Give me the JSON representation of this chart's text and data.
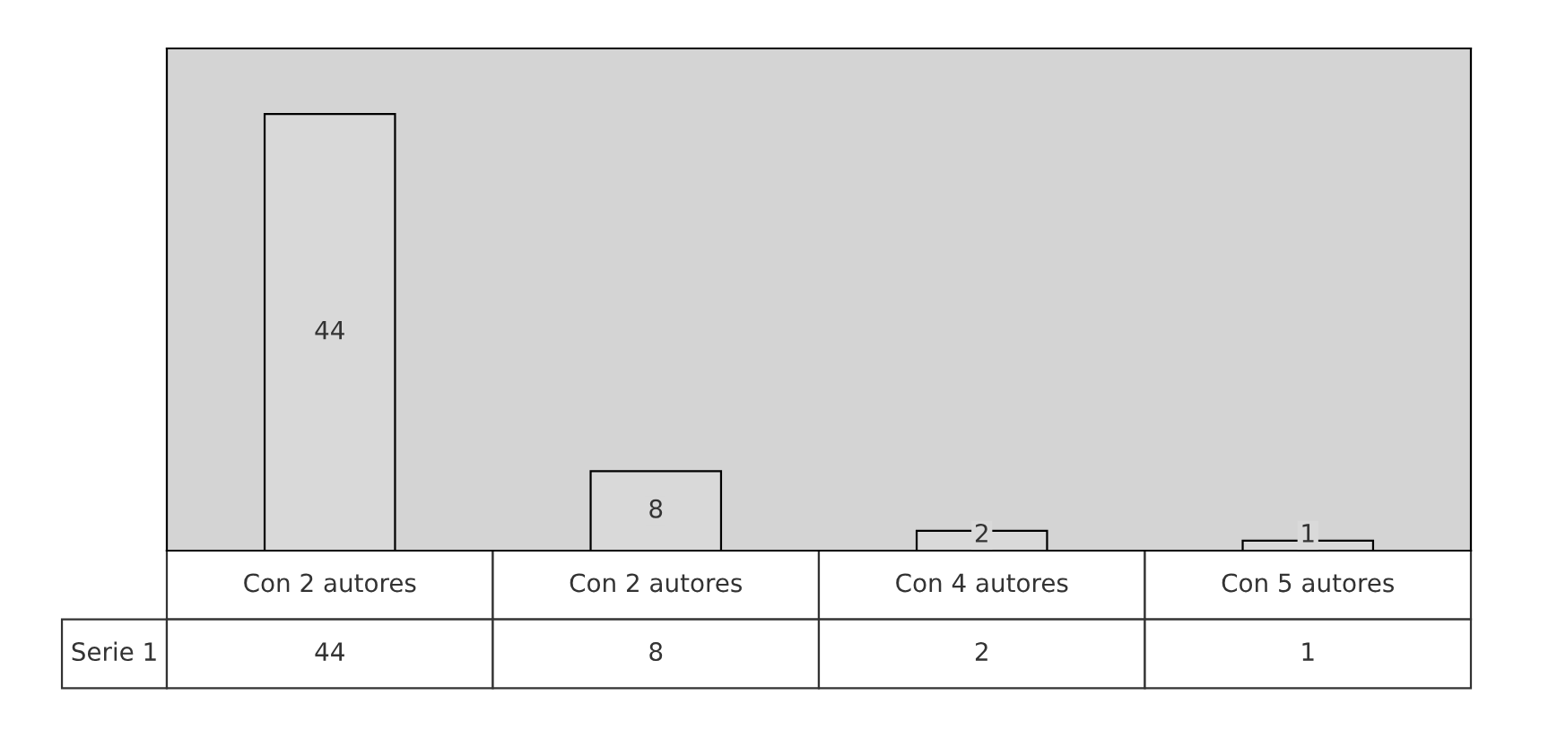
{
  "chart_data": {
    "type": "bar",
    "categories": [
      "Con 2 autores",
      "Con 2 autores",
      "Con 4 autores",
      "Con 5 autores"
    ],
    "series": [
      {
        "name": "Serie 1",
        "color": "#d9d9d9",
        "values": [
          44,
          8,
          2,
          1
        ],
        "value_labels": [
          "44",
          "8",
          "2",
          "1"
        ]
      }
    ],
    "annotations": [
      "44",
      "8",
      "2",
      "1"
    ],
    "data_labels": true
  }
}
